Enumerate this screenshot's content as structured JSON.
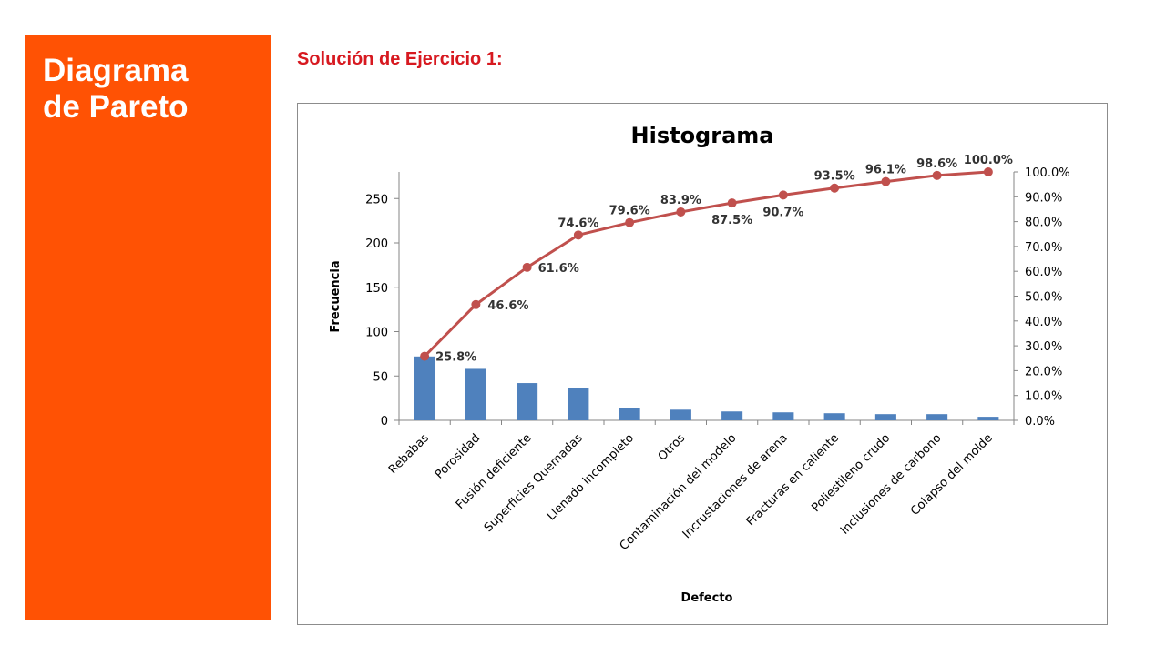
{
  "sidebar": {
    "title_line1": "Diagrama",
    "title_line2": "de Pareto"
  },
  "heading": "Solución de Ejercicio 1:",
  "colors": {
    "panel": "#ff5204",
    "heading": "#d71920",
    "bar": "#4f81bd",
    "line": "#c0504d"
  },
  "chart_data": {
    "type": "bar",
    "title": "Histograma",
    "xlabel": "Defecto",
    "ylabel": "Frecuencia",
    "ylim": [
      0,
      280
    ],
    "y2lim": [
      0,
      100
    ],
    "y_ticks": [
      "0",
      "50",
      "100",
      "150",
      "200",
      "250"
    ],
    "y2_ticks": [
      "0.0%",
      "10.0%",
      "20.0%",
      "30.0%",
      "40.0%",
      "50.0%",
      "60.0%",
      "70.0%",
      "80.0%",
      "90.0%",
      "100.0%"
    ],
    "grid": false,
    "categories": [
      "Rebabas",
      "Porosidad",
      "Fusión deficiente",
      "Superficies Quemadas",
      "Llenado incompleto",
      "Otros",
      "Contaminación del modelo",
      "Incrustaciones de arena",
      "Fracturas en caliente",
      "Poliestileno crudo",
      "Inclusiones de carbono",
      "Colapso del molde"
    ],
    "series": [
      {
        "type": "bar",
        "values": [
          72,
          58,
          42,
          36,
          14,
          12,
          10,
          9,
          8,
          7,
          7,
          4
        ]
      },
      {
        "type": "line",
        "values": [
          25.8,
          46.6,
          61.6,
          74.6,
          79.6,
          83.9,
          87.5,
          90.7,
          93.5,
          96.1,
          98.6,
          100.0
        ],
        "labels": [
          "25.8%",
          "46.6%",
          "61.6%",
          "74.6%",
          "79.6%",
          "83.9%",
          "87.5%",
          "90.7%",
          "93.5%",
          "96.1%",
          "98.6%",
          "100.0%"
        ]
      }
    ]
  }
}
